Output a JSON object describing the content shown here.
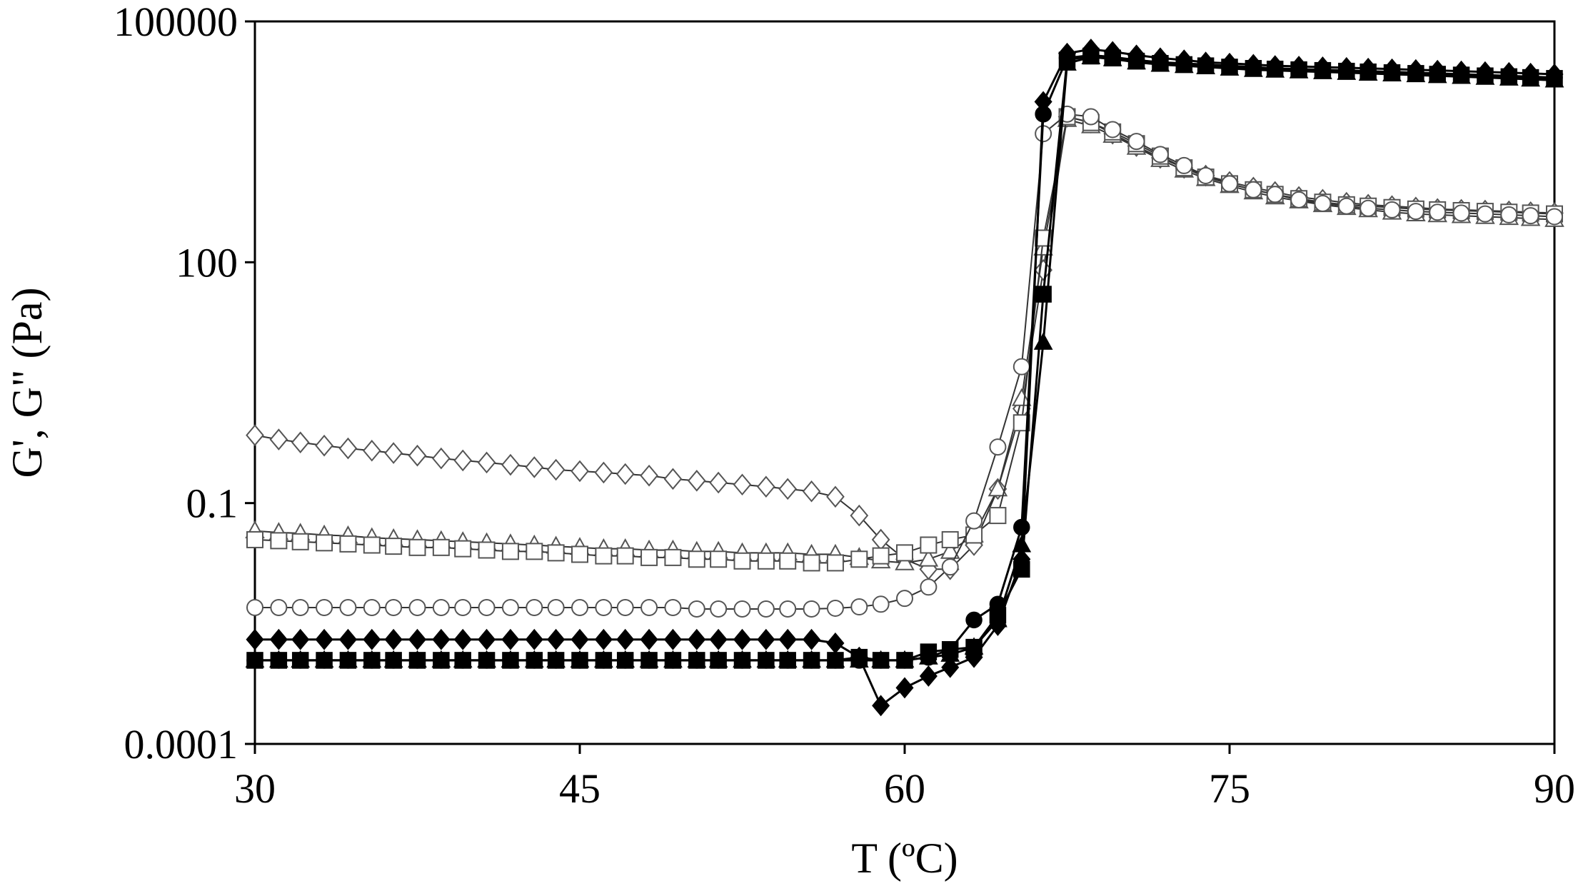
{
  "chart_data": {
    "type": "scatter",
    "xlabel": "T (ºC)",
    "ylabel": "G', G\" (Pa)",
    "xlim": [
      30,
      90
    ],
    "ylim": [
      0.0001,
      100000
    ],
    "yscale": "log",
    "xticks": [
      30,
      45,
      60,
      75,
      90
    ],
    "xtick_labels": [
      "30",
      "45",
      "60",
      "75",
      "90"
    ],
    "yticks": [
      0.0001,
      0.1,
      100,
      100000
    ],
    "ytick_labels": [
      "0.0001",
      "0.1",
      "100",
      "100000"
    ],
    "grid": false,
    "legend": "none",
    "series": [
      {
        "marker": "diamond-open",
        "x": [
          30,
          31.1,
          32.1,
          33.2,
          34.3,
          35.4,
          36.4,
          37.5,
          38.6,
          39.6,
          40.7,
          41.8,
          42.9,
          43.9,
          45,
          46.1,
          47.1,
          48.2,
          49.3,
          50.4,
          51.4,
          52.5,
          53.6,
          54.6,
          55.7,
          56.8,
          57.9,
          58.9,
          60,
          61.1,
          62.1,
          63.2,
          64.3,
          65.4,
          66.4,
          67.5,
          68.6,
          69.6,
          70.7,
          71.8,
          72.9,
          73.9,
          75,
          76.1,
          77.1,
          78.2,
          79.3,
          80.4,
          81.4,
          82.5,
          83.6,
          84.6,
          85.7,
          86.8,
          87.9,
          88.9,
          90
        ],
        "y": [
          0.7,
          0.62,
          0.57,
          0.52,
          0.48,
          0.45,
          0.42,
          0.39,
          0.36,
          0.34,
          0.32,
          0.3,
          0.28,
          0.26,
          0.25,
          0.24,
          0.23,
          0.22,
          0.2,
          0.19,
          0.18,
          0.17,
          0.16,
          0.15,
          0.14,
          0.12,
          0.07,
          0.035,
          0.02,
          0.015,
          0.015,
          0.03,
          0.15,
          1.5,
          80,
          6500,
          5500,
          4000,
          2800,
          2000,
          1500,
          1200,
          1000,
          850,
          750,
          650,
          600,
          550,
          520,
          500,
          480,
          460,
          450,
          440,
          430,
          420,
          410
        ]
      },
      {
        "marker": "triangle-open",
        "x": [
          30,
          31.1,
          32.1,
          33.2,
          34.3,
          35.4,
          36.4,
          37.5,
          38.6,
          39.6,
          40.7,
          41.8,
          42.9,
          43.9,
          45,
          46.1,
          47.1,
          48.2,
          49.3,
          50.4,
          51.4,
          52.5,
          53.6,
          54.6,
          55.7,
          56.8,
          57.9,
          58.9,
          60,
          61.1,
          62.1,
          63.2,
          64.3,
          65.4,
          66.4,
          67.5,
          68.6,
          69.6,
          70.7,
          71.8,
          72.9,
          73.9,
          75,
          76.1,
          77.1,
          78.2,
          79.3,
          80.4,
          81.4,
          82.5,
          83.6,
          84.6,
          85.7,
          86.8,
          87.9,
          88.9,
          90
        ],
        "y": [
          0.045,
          0.043,
          0.042,
          0.04,
          0.039,
          0.037,
          0.036,
          0.035,
          0.034,
          0.033,
          0.032,
          0.031,
          0.03,
          0.029,
          0.028,
          0.027,
          0.027,
          0.026,
          0.026,
          0.025,
          0.025,
          0.024,
          0.024,
          0.024,
          0.023,
          0.023,
          0.021,
          0.019,
          0.018,
          0.02,
          0.025,
          0.04,
          0.15,
          2,
          150,
          6000,
          5000,
          3800,
          2700,
          1900,
          1400,
          1100,
          900,
          750,
          650,
          580,
          520,
          480,
          450,
          420,
          400,
          390,
          380,
          370,
          360,
          350,
          340
        ]
      },
      {
        "marker": "square-open",
        "x": [
          30,
          31.1,
          32.1,
          33.2,
          34.3,
          35.4,
          36.4,
          37.5,
          38.6,
          39.6,
          40.7,
          41.8,
          42.9,
          43.9,
          45,
          46.1,
          47.1,
          48.2,
          49.3,
          50.4,
          51.4,
          52.5,
          53.6,
          54.6,
          55.7,
          56.8,
          57.9,
          58.9,
          60,
          61.1,
          62.1,
          63.2,
          64.3,
          65.4,
          66.4,
          67.5,
          68.6,
          69.6,
          70.7,
          71.8,
          72.9,
          73.9,
          75,
          76.1,
          77.1,
          78.2,
          79.3,
          80.4,
          81.4,
          82.5,
          83.6,
          84.6,
          85.7,
          86.8,
          87.9,
          88.9,
          90
        ],
        "y": [
          0.035,
          0.034,
          0.033,
          0.032,
          0.031,
          0.03,
          0.029,
          0.028,
          0.028,
          0.027,
          0.026,
          0.025,
          0.025,
          0.024,
          0.023,
          0.022,
          0.022,
          0.021,
          0.021,
          0.02,
          0.02,
          0.019,
          0.019,
          0.019,
          0.018,
          0.018,
          0.02,
          0.022,
          0.024,
          0.03,
          0.035,
          0.04,
          0.07,
          1,
          200,
          6500,
          5500,
          4200,
          3000,
          2100,
          1500,
          1150,
          950,
          800,
          700,
          620,
          560,
          520,
          500,
          480,
          460,
          450,
          440,
          430,
          420,
          410,
          400
        ]
      },
      {
        "marker": "circle-open",
        "x": [
          30,
          31.1,
          32.1,
          33.2,
          34.3,
          35.4,
          36.4,
          37.5,
          38.6,
          39.6,
          40.7,
          41.8,
          42.9,
          43.9,
          45,
          46.1,
          47.1,
          48.2,
          49.3,
          50.4,
          51.4,
          52.5,
          53.6,
          54.6,
          55.7,
          56.8,
          57.9,
          58.9,
          60,
          61.1,
          62.1,
          63.2,
          64.3,
          65.4,
          66.4,
          67.5,
          68.6,
          69.6,
          70.7,
          71.8,
          72.9,
          73.9,
          75,
          76.1,
          77.1,
          78.2,
          79.3,
          80.4,
          81.4,
          82.5,
          83.6,
          84.6,
          85.7,
          86.8,
          87.9,
          88.9,
          90
        ],
        "y": [
          0.005,
          0.005,
          0.005,
          0.005,
          0.005,
          0.005,
          0.005,
          0.005,
          0.005,
          0.005,
          0.005,
          0.005,
          0.005,
          0.005,
          0.005,
          0.005,
          0.005,
          0.005,
          0.005,
          0.0048,
          0.0048,
          0.0048,
          0.0048,
          0.0048,
          0.0048,
          0.0049,
          0.0051,
          0.0055,
          0.0065,
          0.009,
          0.016,
          0.06,
          0.5,
          5,
          4000,
          7000,
          6500,
          4500,
          3200,
          2200,
          1600,
          1200,
          950,
          800,
          700,
          600,
          540,
          500,
          470,
          450,
          430,
          420,
          410,
          400,
          390,
          380,
          370
        ]
      },
      {
        "marker": "diamond-filled",
        "x": [
          30,
          31.1,
          32.1,
          33.2,
          34.3,
          35.4,
          36.4,
          37.5,
          38.6,
          39.6,
          40.7,
          41.8,
          42.9,
          43.9,
          45,
          46.1,
          47.1,
          48.2,
          49.3,
          50.4,
          51.4,
          52.5,
          53.6,
          54.6,
          55.7,
          56.8,
          57.9,
          58.9,
          60,
          61.1,
          62.1,
          63.2,
          64.3,
          65.4,
          66.4,
          67.5,
          68.6,
          69.6,
          70.7,
          71.8,
          72.9,
          73.9,
          75,
          76.1,
          77.1,
          78.2,
          79.3,
          80.4,
          81.4,
          82.5,
          83.6,
          84.6,
          85.7,
          86.8,
          87.9,
          88.9,
          90
        ],
        "y": [
          0.002,
          0.002,
          0.002,
          0.002,
          0.002,
          0.002,
          0.002,
          0.002,
          0.002,
          0.002,
          0.002,
          0.002,
          0.002,
          0.002,
          0.002,
          0.002,
          0.002,
          0.002,
          0.002,
          0.002,
          0.002,
          0.002,
          0.002,
          0.002,
          0.002,
          0.0018,
          0.0012,
          0.0003,
          0.0005,
          0.0007,
          0.0009,
          0.0012,
          0.003,
          0.02,
          10000,
          40000,
          45000,
          42000,
          38000,
          35000,
          33000,
          31000,
          30000,
          29000,
          28000,
          27500,
          27000,
          26500,
          26000,
          25500,
          25000,
          24500,
          24000,
          23500,
          23000,
          22500,
          22000
        ]
      },
      {
        "marker": "circle-filled",
        "x": [
          30,
          31.1,
          32.1,
          33.2,
          34.3,
          35.4,
          36.4,
          37.5,
          38.6,
          39.6,
          40.7,
          41.8,
          42.9,
          43.9,
          45,
          46.1,
          47.1,
          48.2,
          49.3,
          50.4,
          51.4,
          52.5,
          53.6,
          54.6,
          55.7,
          56.8,
          57.9,
          58.9,
          60,
          61.1,
          62.1,
          63.2,
          64.3,
          65.4,
          66.4,
          67.5,
          68.6,
          69.6,
          70.7,
          71.8,
          72.9,
          73.9,
          75,
          76.1,
          77.1,
          78.2,
          79.3,
          80.4,
          81.4,
          82.5,
          83.6,
          84.6,
          85.7,
          86.8,
          87.9,
          88.9,
          90
        ],
        "y": [
          0.0011,
          0.0011,
          0.0011,
          0.0011,
          0.0011,
          0.0011,
          0.0011,
          0.0011,
          0.0011,
          0.0011,
          0.0011,
          0.0011,
          0.0011,
          0.0011,
          0.0011,
          0.0011,
          0.0011,
          0.0011,
          0.0011,
          0.0011,
          0.0011,
          0.0011,
          0.0011,
          0.0011,
          0.0011,
          0.0011,
          0.0011,
          0.0011,
          0.0011,
          0.0012,
          0.0015,
          0.0035,
          0.0055,
          0.05,
          7000,
          35000,
          38000,
          36000,
          33000,
          31000,
          30000,
          29000,
          28000,
          27000,
          26000,
          25500,
          25000,
          24500,
          24000,
          23500,
          23000,
          22500,
          22000,
          21500,
          21000,
          20500,
          20000
        ]
      },
      {
        "marker": "triangle-filled",
        "x": [
          30,
          31.1,
          32.1,
          33.2,
          34.3,
          35.4,
          36.4,
          37.5,
          38.6,
          39.6,
          40.7,
          41.8,
          42.9,
          43.9,
          45,
          46.1,
          47.1,
          48.2,
          49.3,
          50.4,
          51.4,
          52.5,
          53.6,
          54.6,
          55.7,
          56.8,
          57.9,
          58.9,
          60,
          61.1,
          62.1,
          63.2,
          64.3,
          65.4,
          66.4,
          67.5,
          68.6,
          69.6,
          70.7,
          71.8,
          72.9,
          73.9,
          75,
          76.1,
          77.1,
          78.2,
          79.3,
          80.4,
          81.4,
          82.5,
          83.6,
          84.6,
          85.7,
          86.8,
          87.9,
          88.9,
          90
        ],
        "y": [
          0.0011,
          0.0011,
          0.0011,
          0.0011,
          0.0011,
          0.0011,
          0.0011,
          0.0011,
          0.0011,
          0.0011,
          0.0011,
          0.0011,
          0.0011,
          0.0011,
          0.0011,
          0.0011,
          0.0011,
          0.0011,
          0.0011,
          0.0011,
          0.0011,
          0.0011,
          0.0011,
          0.0011,
          0.0011,
          0.0011,
          0.0011,
          0.0011,
          0.0011,
          0.0012,
          0.0013,
          0.0016,
          0.0035,
          0.03,
          10,
          30000,
          36000,
          34000,
          31000,
          29000,
          28000,
          27000,
          26000,
          25000,
          24500,
          24000,
          23500,
          23000,
          22500,
          22000,
          21500,
          21000,
          20500,
          20000,
          19500,
          19000,
          18500
        ]
      },
      {
        "marker": "square-filled",
        "x": [
          30,
          31.1,
          32.1,
          33.2,
          34.3,
          35.4,
          36.4,
          37.5,
          38.6,
          39.6,
          40.7,
          41.8,
          42.9,
          43.9,
          45,
          46.1,
          47.1,
          48.2,
          49.3,
          50.4,
          51.4,
          52.5,
          53.6,
          54.6,
          55.7,
          56.8,
          57.9,
          58.9,
          60,
          61.1,
          62.1,
          63.2,
          64.3,
          65.4,
          66.4,
          67.5,
          68.6,
          69.6,
          70.7,
          71.8,
          72.9,
          73.9,
          75,
          76.1,
          77.1,
          78.2,
          79.3,
          80.4,
          81.4,
          82.5,
          83.6,
          84.6,
          85.7,
          86.8,
          87.9,
          88.9,
          90
        ],
        "y": [
          0.0011,
          0.0011,
          0.0011,
          0.0011,
          0.0011,
          0.0011,
          0.0011,
          0.0011,
          0.0011,
          0.0011,
          0.0011,
          0.0011,
          0.0011,
          0.0011,
          0.0011,
          0.0011,
          0.0011,
          0.0011,
          0.0011,
          0.0011,
          0.0011,
          0.0011,
          0.0011,
          0.0011,
          0.0011,
          0.0011,
          0.0012,
          0.0011,
          0.0011,
          0.0014,
          0.0015,
          0.0016,
          0.004,
          0.015,
          40,
          33000,
          37000,
          35000,
          32000,
          30000,
          29000,
          28000,
          27000,
          26000,
          25500,
          25000,
          24500,
          24000,
          23500,
          23000,
          22500,
          22000,
          21500,
          21000,
          20500,
          20000,
          19500
        ]
      }
    ]
  }
}
